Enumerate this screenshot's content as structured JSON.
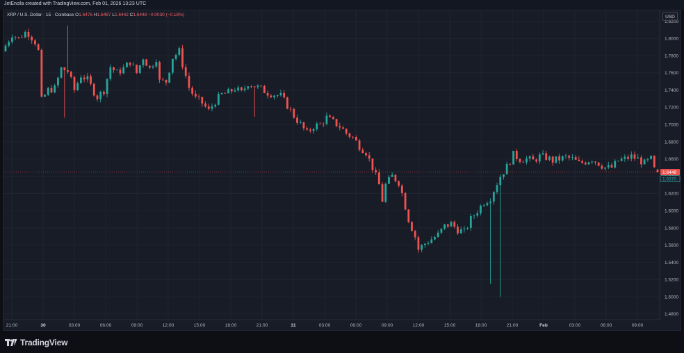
{
  "header": {
    "credit": "JetEncila created with TradingView.com, Feb 01, 2026 13:23 UTC"
  },
  "legend": {
    "symbol": "XRP / U.S. Dollar · 15 · Coinbase",
    "o_label": "O",
    "o_value": "1.6476",
    "h_label": "H",
    "h_value": "1.6487",
    "l_label": "L",
    "l_value": "1.6442",
    "c_label": "C",
    "c_value": "1.6448",
    "change": "−0.0030 (−0.18%)"
  },
  "currency_button": "USD",
  "branding": {
    "logo_text": "TradingView"
  },
  "colors": {
    "up": "#26a69a",
    "down": "#ef5350",
    "background": "#181c27",
    "grid": "#232736",
    "axis_text": "#b2b5be",
    "price_line": "#ef5350"
  },
  "chart_data": {
    "type": "candlestick",
    "symbol": "XRP / U.S. Dollar",
    "interval": "15",
    "exchange": "Coinbase",
    "y_range": [
      1.47,
      1.84
    ],
    "y_ticks": [
      "1.8200",
      "1.8000",
      "1.7800",
      "1.7600",
      "1.7400",
      "1.7200",
      "1.7000",
      "1.6800",
      "1.6600",
      "1.6400",
      "1.6200",
      "1.6000",
      "1.5800",
      "1.5600",
      "1.5400",
      "1.5200",
      "1.5000",
      "1.4800"
    ],
    "x_ticks": [
      "21:00",
      "30",
      "03:00",
      "06:00",
      "09:00",
      "12:00",
      "15:00",
      "18:00",
      "21:00",
      "31",
      "03:00",
      "06:00",
      "09:00",
      "12:00",
      "15:00",
      "18:00",
      "21:00",
      "Feb",
      "03:00",
      "06:00",
      "09:00"
    ],
    "bold_x_ticks": [
      "30",
      "31",
      "Feb"
    ],
    "current_price": "1.6448",
    "secondary_price": "1.6370",
    "grid": true,
    "path": [
      [
        0,
        1.785
      ],
      [
        3,
        1.805
      ],
      [
        5,
        1.8
      ],
      [
        7,
        1.807
      ],
      [
        8,
        1.806
      ],
      [
        10,
        1.796
      ],
      [
        11,
        1.785
      ],
      [
        12,
        1.728
      ],
      [
        14,
        1.74
      ],
      [
        16,
        1.742
      ],
      [
        18,
        1.765
      ],
      [
        20,
        1.762
      ],
      [
        22,
        1.74
      ],
      [
        24,
        1.757
      ],
      [
        26,
        1.752
      ],
      [
        28,
        1.738
      ],
      [
        29,
        1.732
      ],
      [
        31,
        1.74
      ],
      [
        33,
        1.767
      ],
      [
        35,
        1.76
      ],
      [
        37,
        1.765
      ],
      [
        39,
        1.773
      ],
      [
        41,
        1.76
      ],
      [
        43,
        1.778
      ],
      [
        45,
        1.765
      ],
      [
        47,
        1.777
      ],
      [
        48,
        1.75
      ],
      [
        50,
        1.75
      ],
      [
        52,
        1.778
      ],
      [
        54,
        1.785
      ],
      [
        55,
        1.77
      ],
      [
        57,
        1.743
      ],
      [
        59,
        1.73
      ],
      [
        61,
        1.725
      ],
      [
        63,
        1.716
      ],
      [
        65,
        1.727
      ],
      [
        67,
        1.735
      ],
      [
        69,
        1.737
      ],
      [
        71,
        1.742
      ],
      [
        73,
        1.737
      ],
      [
        75,
        1.748
      ],
      [
        77,
        1.745
      ],
      [
        79,
        1.741
      ],
      [
        81,
        1.737
      ],
      [
        83,
        1.735
      ],
      [
        85,
        1.733
      ],
      [
        87,
        1.722
      ],
      [
        89,
        1.71
      ],
      [
        91,
        1.7
      ],
      [
        93,
        1.69
      ],
      [
        95,
        1.698
      ],
      [
        97,
        1.7
      ],
      [
        99,
        1.708
      ],
      [
        101,
        1.703
      ],
      [
        103,
        1.698
      ],
      [
        105,
        1.69
      ],
      [
        107,
        1.685
      ],
      [
        109,
        1.675
      ],
      [
        111,
        1.668
      ],
      [
        113,
        1.65
      ],
      [
        115,
        1.63
      ],
      [
        116,
        1.612
      ],
      [
        117,
        1.63
      ],
      [
        119,
        1.64
      ],
      [
        121,
        1.633
      ],
      [
        122,
        1.62
      ],
      [
        123,
        1.605
      ],
      [
        124,
        1.59
      ],
      [
        126,
        1.57
      ],
      [
        127,
        1.555
      ],
      [
        129,
        1.562
      ],
      [
        131,
        1.567
      ],
      [
        133,
        1.572
      ],
      [
        135,
        1.582
      ],
      [
        137,
        1.585
      ],
      [
        139,
        1.578
      ],
      [
        141,
        1.575
      ],
      [
        143,
        1.59
      ],
      [
        145,
        1.6
      ],
      [
        147,
        1.61
      ],
      [
        149,
        1.615
      ],
      [
        150,
        1.624
      ],
      [
        152,
        1.64
      ],
      [
        154,
        1.651
      ],
      [
        156,
        1.665
      ],
      [
        158,
        1.66
      ],
      [
        160,
        1.66
      ],
      [
        162,
        1.658
      ],
      [
        164,
        1.663
      ],
      [
        166,
        1.662
      ],
      [
        168,
        1.658
      ],
      [
        170,
        1.66
      ],
      [
        172,
        1.662
      ],
      [
        174,
        1.66
      ],
      [
        176,
        1.655
      ],
      [
        178,
        1.657
      ],
      [
        180,
        1.66
      ],
      [
        182,
        1.655
      ],
      [
        184,
        1.65
      ],
      [
        186,
        1.65
      ],
      [
        188,
        1.658
      ],
      [
        190,
        1.66
      ],
      [
        192,
        1.663
      ],
      [
        194,
        1.66
      ],
      [
        196,
        1.655
      ],
      [
        198,
        1.66
      ],
      [
        199,
        1.6476
      ]
    ],
    "spikes": [
      [
        18,
        1.708
      ],
      [
        19,
        1.815
      ],
      [
        76,
        1.709
      ],
      [
        148,
        1.515
      ],
      [
        151,
        1.5
      ]
    ],
    "last_candle": {
      "o": 1.6476,
      "h": 1.6487,
      "l": 1.6442,
      "c": 1.6448
    }
  }
}
